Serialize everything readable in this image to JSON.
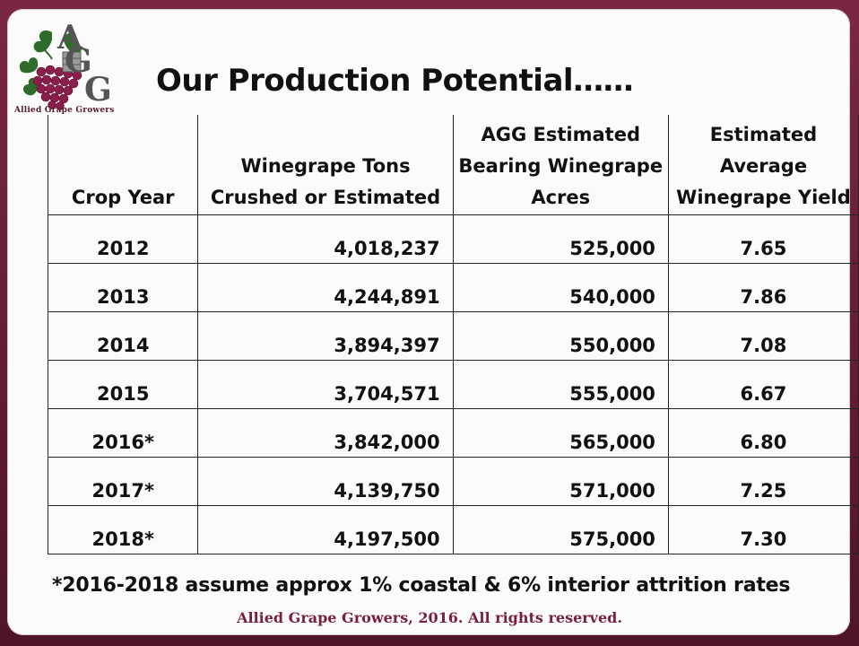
{
  "logo": {
    "letters": "AGG",
    "caption": "Allied Grape Growers"
  },
  "title": "Our Production Potential……",
  "table": {
    "headers": [
      "Crop Year",
      "Winegrape Tons Crushed or Estimated",
      "AGG Estimated Bearing Winegrape Acres",
      "Estimated Average Winegrape Yield"
    ],
    "rows": [
      {
        "year": "2012",
        "tons": "4,018,237",
        "acres": "525,000",
        "yield": "7.65"
      },
      {
        "year": "2013",
        "tons": "4,244,891",
        "acres": "540,000",
        "yield": "7.86"
      },
      {
        "year": "2014",
        "tons": "3,894,397",
        "acres": "550,000",
        "yield": "7.08"
      },
      {
        "year": "2015",
        "tons": "3,704,571",
        "acres": "555,000",
        "yield": "6.67"
      },
      {
        "year": "2016*",
        "tons": "3,842,000",
        "acres": "565,000",
        "yield": "6.80"
      },
      {
        "year": "2017*",
        "tons": "4,139,750",
        "acres": "571,000",
        "yield": "7.25"
      },
      {
        "year": "2018*",
        "tons": "4,197,500",
        "acres": "575,000",
        "yield": "7.30"
      }
    ]
  },
  "footnote": "*2016-2018 assume approx 1% coastal & 6% interior attrition rates",
  "copyright": "Allied Grape Growers, 2016.  All rights reserved.",
  "colors": {
    "frame": "#6b1f3a",
    "brand": "#7a1f3e",
    "grape": "#8b1e4a",
    "leaf": "#2f6b2a"
  }
}
